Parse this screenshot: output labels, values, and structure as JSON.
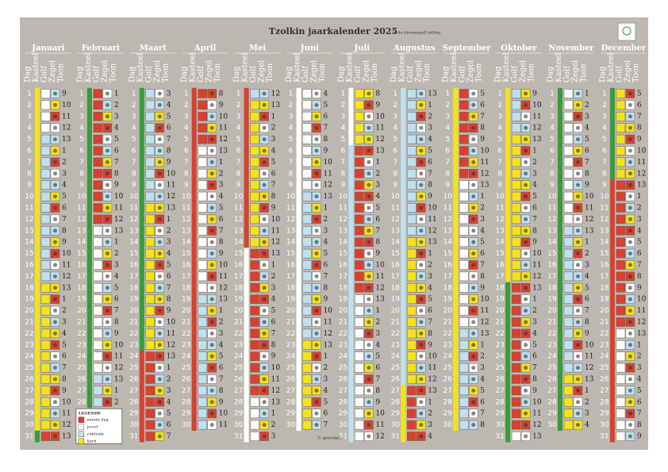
{
  "header": {
    "title": "Tzolkin jaarkalender 2025",
    "subtitle": "in de dreamspell telling"
  },
  "columns": [
    "Dag",
    "Kasteel",
    "Golf",
    "Zegel",
    "Toon"
  ],
  "months": [
    {
      "name": "Januari",
      "days": [
        1,
        2,
        3,
        4,
        5,
        6,
        7,
        8,
        9,
        10,
        11,
        12,
        13,
        14,
        15,
        16,
        17,
        18,
        19,
        20,
        21,
        22,
        23,
        24,
        25,
        26,
        27,
        28,
        29,
        30,
        31
      ],
      "tones": [
        9,
        10,
        11,
        12,
        13,
        1,
        2,
        3,
        4,
        5,
        6,
        7,
        8,
        9,
        10,
        11,
        12,
        13,
        1,
        2,
        3,
        4,
        5,
        6,
        7,
        8,
        9,
        10,
        11,
        12,
        13
      ]
    },
    {
      "name": "Februari",
      "days": [
        1,
        2,
        3,
        4,
        5,
        6,
        7,
        8,
        9,
        10,
        11,
        12,
        13,
        14,
        15,
        16,
        17,
        18,
        19,
        20,
        21,
        22,
        23,
        24,
        25,
        26,
        27,
        28
      ],
      "tones": [
        1,
        2,
        3,
        4,
        5,
        6,
        7,
        8,
        9,
        10,
        11,
        12,
        13,
        1,
        2,
        3,
        4,
        5,
        6,
        7,
        8,
        9,
        10,
        11,
        12,
        13,
        1,
        2
      ]
    },
    {
      "name": "Maart",
      "days": [
        1,
        2,
        3,
        4,
        5,
        6,
        7,
        8,
        9,
        10,
        11,
        12,
        13,
        14,
        15,
        16,
        17,
        18,
        19,
        20,
        21,
        22,
        23,
        24,
        25,
        26,
        27,
        28,
        29,
        30,
        31
      ],
      "tones": [
        3,
        4,
        5,
        6,
        7,
        8,
        9,
        10,
        11,
        12,
        13,
        1,
        2,
        3,
        4,
        5,
        6,
        7,
        8,
        9,
        10,
        11,
        12,
        13,
        1,
        2,
        3,
        4,
        5,
        6,
        7
      ]
    },
    {
      "name": "April",
      "days": [
        1,
        2,
        3,
        4,
        5,
        6,
        7,
        8,
        9,
        10,
        11,
        12,
        13,
        14,
        15,
        16,
        17,
        18,
        19,
        20,
        21,
        22,
        23,
        24,
        25,
        26,
        27,
        28,
        29,
        30
      ],
      "tones": [
        8,
        9,
        10,
        11,
        12,
        13,
        1,
        2,
        3,
        4,
        5,
        6,
        7,
        8,
        9,
        10,
        11,
        12,
        13,
        1,
        2,
        3,
        4,
        5,
        6,
        7,
        8,
        9,
        10,
        11
      ]
    },
    {
      "name": "Mei",
      "days": [
        1,
        2,
        3,
        4,
        5,
        6,
        7,
        8,
        9,
        10,
        11,
        12,
        13,
        14,
        15,
        16,
        17,
        18,
        19,
        20,
        21,
        22,
        23,
        24,
        25,
        26,
        27,
        28,
        29,
        30,
        31
      ],
      "tones": [
        12,
        13,
        1,
        2,
        3,
        4,
        5,
        6,
        7,
        8,
        9,
        10,
        11,
        12,
        13,
        1,
        2,
        3,
        4,
        5,
        6,
        7,
        8,
        9,
        10,
        11,
        12,
        13,
        1,
        2,
        3
      ]
    },
    {
      "name": "Juni",
      "days": [
        1,
        2,
        3,
        4,
        5,
        6,
        7,
        8,
        9,
        10,
        11,
        12,
        13,
        14,
        15,
        16,
        17,
        18,
        19,
        20,
        21,
        22,
        23,
        24,
        25,
        26,
        27,
        28,
        29,
        30
      ],
      "tones": [
        4,
        5,
        6,
        7,
        8,
        9,
        10,
        11,
        12,
        13,
        1,
        2,
        3,
        4,
        5,
        6,
        7,
        8,
        9,
        10,
        11,
        12,
        13,
        1,
        2,
        3,
        4,
        5,
        6,
        7
      ]
    },
    {
      "name": "Juli",
      "days": [
        1,
        2,
        3,
        4,
        5,
        6,
        7,
        8,
        9,
        10,
        11,
        12,
        13,
        14,
        15,
        16,
        17,
        18,
        19,
        20,
        21,
        22,
        23,
        24,
        25,
        26,
        27,
        28,
        29,
        30,
        31
      ],
      "tones": [
        8,
        9,
        10,
        11,
        12,
        13,
        1,
        2,
        3,
        4,
        5,
        6,
        7,
        8,
        9,
        10,
        11,
        12,
        13,
        1,
        2,
        3,
        4,
        5,
        6,
        7,
        8,
        9,
        10,
        11,
        12
      ]
    },
    {
      "name": "Augustus",
      "days": [
        1,
        2,
        3,
        4,
        5,
        6,
        7,
        8,
        9,
        10,
        11,
        12,
        13,
        14,
        15,
        16,
        17,
        18,
        19,
        20,
        21,
        22,
        23,
        24,
        25,
        26,
        27,
        28,
        29,
        30,
        31
      ],
      "tones": [
        13,
        1,
        2,
        3,
        4,
        5,
        6,
        7,
        8,
        9,
        10,
        11,
        12,
        13,
        1,
        2,
        3,
        4,
        5,
        6,
        7,
        8,
        9,
        10,
        11,
        12,
        13,
        1,
        2,
        3,
        4
      ]
    },
    {
      "name": "September",
      "days": [
        1,
        2,
        3,
        4,
        5,
        6,
        7,
        8,
        9,
        10,
        11,
        12,
        13,
        14,
        15,
        16,
        17,
        18,
        19,
        20,
        21,
        22,
        23,
        24,
        25,
        26,
        27,
        28,
        29,
        30
      ],
      "tones": [
        5,
        6,
        7,
        8,
        9,
        10,
        11,
        12,
        13,
        1,
        2,
        3,
        4,
        5,
        6,
        7,
        8,
        9,
        10,
        11,
        12,
        13,
        1,
        2,
        3,
        4,
        5,
        6,
        7,
        8
      ]
    },
    {
      "name": "Oktober",
      "days": [
        1,
        2,
        3,
        4,
        5,
        6,
        7,
        8,
        9,
        10,
        11,
        12,
        13,
        14,
        15,
        16,
        17,
        18,
        19,
        20,
        21,
        22,
        23,
        24,
        25,
        26,
        27,
        28,
        29,
        30,
        31
      ],
      "tones": [
        9,
        10,
        11,
        12,
        13,
        1,
        2,
        3,
        4,
        5,
        6,
        7,
        8,
        9,
        10,
        11,
        12,
        13,
        1,
        2,
        3,
        4,
        5,
        6,
        7,
        8,
        9,
        10,
        11,
        12,
        13
      ]
    },
    {
      "name": "November",
      "days": [
        1,
        2,
        3,
        4,
        5,
        6,
        7,
        8,
        9,
        10,
        11,
        12,
        13,
        14,
        15,
        16,
        17,
        18,
        19,
        20,
        21,
        22,
        23,
        24,
        25,
        26,
        27,
        28,
        29,
        30
      ],
      "tones": [
        1,
        2,
        3,
        4,
        5,
        6,
        7,
        8,
        9,
        10,
        11,
        12,
        13,
        1,
        2,
        3,
        4,
        5,
        6,
        7,
        8,
        9,
        10,
        11,
        12,
        13,
        1,
        2,
        3,
        4
      ]
    },
    {
      "name": "December",
      "days": [
        1,
        2,
        3,
        4,
        5,
        6,
        7,
        8,
        9,
        10,
        11,
        12,
        13,
        14,
        15,
        16,
        17,
        18,
        19,
        20,
        21,
        22,
        23,
        24,
        25,
        26,
        27,
        28,
        29,
        30,
        31
      ],
      "tones": [
        5,
        6,
        7,
        8,
        9,
        10,
        11,
        12,
        13,
        1,
        2,
        3,
        4,
        5,
        6,
        7,
        8,
        9,
        10,
        11,
        12,
        13,
        1,
        2,
        3,
        4,
        5,
        6,
        7,
        8,
        9
      ]
    }
  ],
  "legend": {
    "title": "LEGENDE",
    "items": [
      "eerste dag",
      "poort",
      "centrale",
      "kern"
    ]
  },
  "footer": "© gravidabe"
}
